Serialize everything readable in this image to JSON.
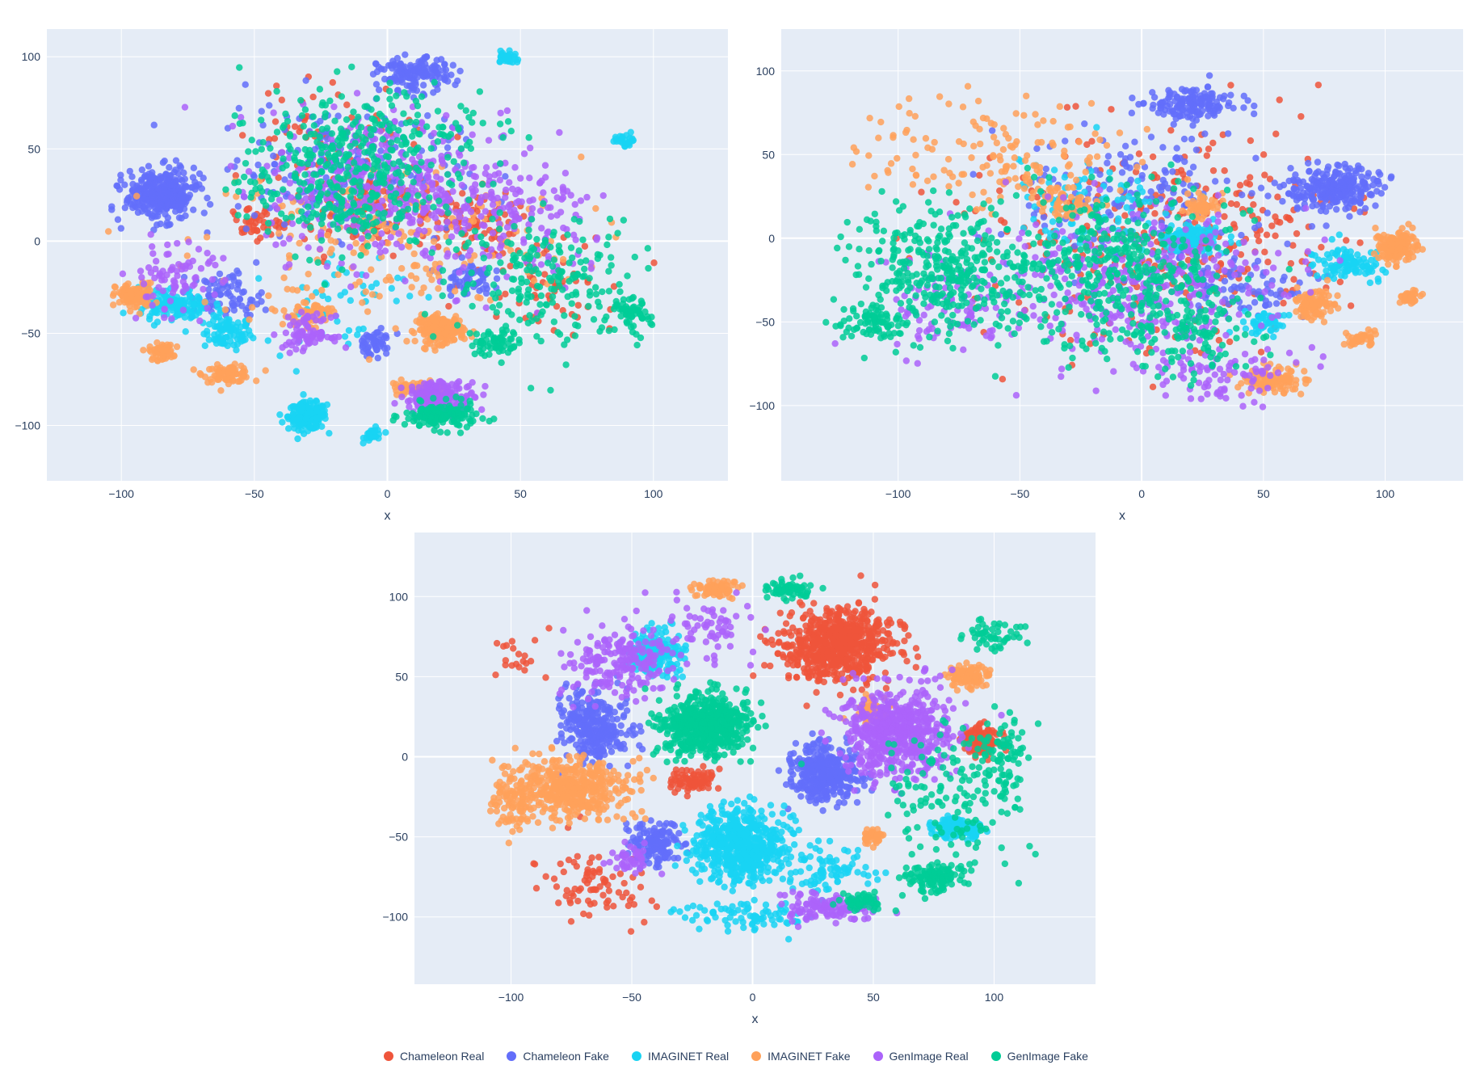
{
  "legend": [
    {
      "name": "Chameleon Real",
      "color": "#ef553b"
    },
    {
      "name": "Chameleon Fake",
      "color": "#636efa"
    },
    {
      "name": "IMAGINET Real",
      "color": "#19d3f3"
    },
    {
      "name": "IMAGINET Fake",
      "color": "#ffa15a"
    },
    {
      "name": "GenImage Real",
      "color": "#ab63fa"
    },
    {
      "name": "GenImage Fake",
      "color": "#00cc96"
    }
  ],
  "plot_bg": "#e5ecf6",
  "chart_data": [
    {
      "type": "scatter",
      "xlabel": "x",
      "ylabel": "",
      "xlim": [
        -128,
        128
      ],
      "ylim": [
        -130,
        115
      ],
      "xticks": [
        "−100",
        "−50",
        "0",
        "50",
        "100"
      ],
      "yticks": [
        "−100",
        "−50",
        "0",
        "50",
        "100"
      ],
      "grid": true,
      "series": [
        {
          "name": "Chameleon Real",
          "clusters": [
            [
              -10,
              20,
              30,
              30,
              120
            ],
            [
              30,
              10,
              20,
              20,
              80
            ],
            [
              -50,
              10,
              10,
              10,
              40
            ],
            [
              60,
              -20,
              30,
              30,
              60
            ],
            [
              -20,
              60,
              40,
              30,
              60
            ]
          ]
        },
        {
          "name": "Chameleon Fake",
          "clusters": [
            [
              -85,
              25,
              15,
              15,
              350
            ],
            [
              10,
              90,
              15,
              10,
              150
            ],
            [
              -60,
              -30,
              15,
              15,
              80
            ],
            [
              30,
              -20,
              10,
              10,
              60
            ],
            [
              -5,
              -55,
              8,
              8,
              50
            ],
            [
              -20,
              40,
              50,
              40,
              200
            ]
          ]
        },
        {
          "name": "IMAGINET Real",
          "clusters": [
            [
              -30,
              -95,
              8,
              8,
              200
            ],
            [
              -80,
              -35,
              15,
              10,
              150
            ],
            [
              -60,
              -50,
              10,
              10,
              80
            ],
            [
              45,
              100,
              4,
              4,
              30
            ],
            [
              -5,
              -105,
              4,
              4,
              30
            ],
            [
              90,
              55,
              5,
              4,
              25
            ],
            [
              -20,
              -30,
              30,
              30,
              50
            ]
          ]
        },
        {
          "name": "IMAGINET Fake",
          "clusters": [
            [
              20,
              -48,
              10,
              8,
              200
            ],
            [
              -95,
              -30,
              8,
              8,
              100
            ],
            [
              -85,
              -60,
              5,
              5,
              60
            ],
            [
              -60,
              -72,
              10,
              5,
              80
            ],
            [
              -30,
              -40,
              10,
              10,
              60
            ],
            [
              10,
              -80,
              10,
              5,
              60
            ],
            [
              0,
              0,
              80,
              50,
              200
            ]
          ]
        },
        {
          "name": "GenImage Real",
          "clusters": [
            [
              20,
              -85,
              15,
              10,
              200
            ],
            [
              -30,
              -50,
              10,
              10,
              80
            ],
            [
              0,
              30,
              50,
              45,
              400
            ],
            [
              -80,
              -20,
              20,
              20,
              80
            ],
            [
              50,
              10,
              40,
              40,
              150
            ]
          ]
        },
        {
          "name": "GenImage Fake",
          "clusters": [
            [
              20,
              -95,
              15,
              8,
              150
            ],
            [
              -20,
              30,
              40,
              40,
              300
            ],
            [
              60,
              -20,
              40,
              40,
              200
            ],
            [
              40,
              -55,
              10,
              8,
              60
            ],
            [
              90,
              -40,
              10,
              10,
              60
            ],
            [
              0,
              60,
              50,
              30,
              150
            ]
          ]
        }
      ]
    },
    {
      "type": "scatter",
      "xlabel": "x",
      "ylabel": "",
      "xlim": [
        -148,
        132
      ],
      "ylim": [
        -145,
        125
      ],
      "xticks": [
        "−100",
        "−50",
        "0",
        "50",
        "100"
      ],
      "yticks": [
        "−100",
        "−50",
        "0",
        "50",
        "100"
      ],
      "grid": true,
      "series": [
        {
          "name": "Chameleon Real",
          "clusters": [
            [
              0,
              0,
              80,
              70,
              250
            ],
            [
              40,
              10,
              50,
              50,
              80
            ]
          ]
        },
        {
          "name": "Chameleon Fake",
          "clusters": [
            [
              80,
              30,
              20,
              15,
              250
            ],
            [
              20,
              80,
              20,
              10,
              150
            ],
            [
              0,
              20,
              60,
              50,
              200
            ],
            [
              40,
              -30,
              30,
              20,
              80
            ]
          ]
        },
        {
          "name": "IMAGINET Real",
          "clusters": [
            [
              20,
              0,
              15,
              10,
              120
            ],
            [
              85,
              -15,
              15,
              10,
              100
            ],
            [
              50,
              -50,
              10,
              8,
              50
            ],
            [
              -20,
              20,
              40,
              40,
              80
            ]
          ]
        },
        {
          "name": "IMAGINET Fake",
          "clusters": [
            [
              105,
              -5,
              10,
              10,
              150
            ],
            [
              70,
              -40,
              10,
              10,
              100
            ],
            [
              55,
              -85,
              15,
              8,
              120
            ],
            [
              -30,
              20,
              15,
              10,
              60
            ],
            [
              25,
              20,
              8,
              8,
              50
            ],
            [
              -60,
              50,
              60,
              40,
              150
            ],
            [
              110,
              -35,
              5,
              5,
              40
            ],
            [
              90,
              -60,
              8,
              5,
              40
            ]
          ]
        },
        {
          "name": "GenImage Real",
          "clusters": [
            [
              0,
              -30,
              60,
              50,
              400
            ],
            [
              -80,
              -40,
              30,
              30,
              100
            ],
            [
              30,
              -80,
              30,
              20,
              80
            ]
          ]
        },
        {
          "name": "GenImage Fake",
          "clusters": [
            [
              -80,
              -20,
              40,
              45,
              350
            ],
            [
              -10,
              -20,
              50,
              50,
              400
            ],
            [
              -110,
              -50,
              15,
              10,
              80
            ],
            [
              20,
              -60,
              30,
              30,
              100
            ]
          ]
        }
      ]
    },
    {
      "type": "scatter",
      "xlabel": "x",
      "ylabel": "",
      "xlim": [
        -140,
        142
      ],
      "ylim": [
        -142,
        140
      ],
      "xticks": [
        "−100",
        "−50",
        "0",
        "50",
        "100"
      ],
      "yticks": [
        "−100",
        "−50",
        "0",
        "50",
        "100"
      ],
      "grid": true,
      "series": [
        {
          "name": "Chameleon Real",
          "clusters": [
            [
              35,
              70,
              25,
              25,
              700
            ],
            [
              95,
              10,
              8,
              10,
              120
            ],
            [
              -25,
              -15,
              10,
              8,
              80
            ],
            [
              -65,
              -80,
              25,
              25,
              80
            ],
            [
              -95,
              60,
              15,
              20,
              20
            ]
          ]
        },
        {
          "name": "Chameleon Fake",
          "clusters": [
            [
              30,
              -10,
              15,
              18,
              400
            ],
            [
              -65,
              20,
              15,
              25,
              300
            ],
            [
              -40,
              -55,
              12,
              15,
              150
            ]
          ]
        },
        {
          "name": "IMAGINET Real",
          "clusters": [
            [
              -5,
              -55,
              20,
              25,
              600
            ],
            [
              85,
              -45,
              12,
              6,
              150
            ],
            [
              -40,
              65,
              12,
              15,
              200
            ],
            [
              0,
              -100,
              30,
              10,
              80
            ],
            [
              30,
              -70,
              20,
              15,
              80
            ]
          ]
        },
        {
          "name": "IMAGINET Fake",
          "clusters": [
            [
              -75,
              -20,
              25,
              20,
              450
            ],
            [
              -100,
              -30,
              10,
              20,
              80
            ],
            [
              -15,
              105,
              10,
              6,
              80
            ],
            [
              90,
              50,
              10,
              8,
              100
            ],
            [
              50,
              30,
              8,
              8,
              60
            ],
            [
              50,
              -50,
              5,
              6,
              40
            ]
          ]
        },
        {
          "name": "GenImage Real",
          "clusters": [
            [
              60,
              15,
              25,
              30,
              600
            ],
            [
              -55,
              60,
              25,
              25,
              200
            ],
            [
              30,
              -95,
              20,
              10,
              120
            ],
            [
              -50,
              -65,
              10,
              10,
              40
            ],
            [
              -20,
              80,
              20,
              20,
              60
            ]
          ]
        },
        {
          "name": "GenImage Fake",
          "clusters": [
            [
              -20,
              20,
              20,
              20,
              600
            ],
            [
              85,
              -20,
              30,
              45,
              150
            ],
            [
              75,
              -75,
              15,
              10,
              120
            ],
            [
              45,
              -90,
              10,
              6,
              60
            ],
            [
              15,
              105,
              10,
              8,
              60
            ],
            [
              100,
              75,
              15,
              10,
              50
            ],
            [
              105,
              0,
              10,
              30,
              60
            ]
          ]
        }
      ]
    }
  ]
}
